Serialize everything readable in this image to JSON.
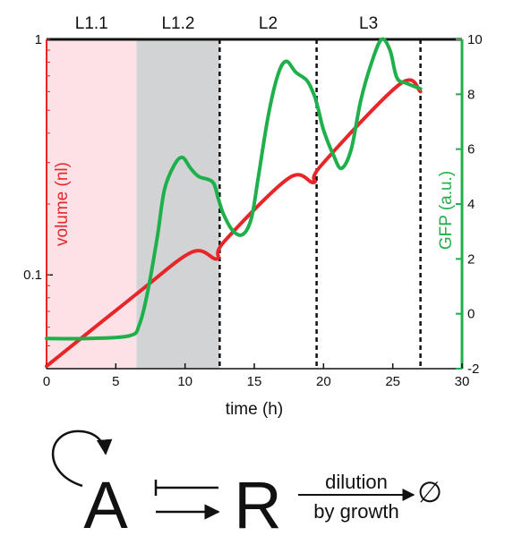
{
  "chart_data": {
    "type": "line",
    "xlabel": "time (h)",
    "xlim": [
      0,
      30
    ],
    "x_ticks": [
      "0",
      "5",
      "10",
      "15",
      "20",
      "25",
      "30"
    ],
    "y_left": {
      "label": "volume (nl)",
      "scale": "log",
      "ylim": [
        0.04,
        1
      ],
      "tick_values": [
        0.1,
        1
      ],
      "tick_labels": [
        "0.1",
        "1"
      ],
      "color": "#e8262a"
    },
    "y_right": {
      "label": "GFP (a.u.)",
      "scale": "linear",
      "ylim": [
        -2,
        10
      ],
      "tick_labels": [
        "-2",
        "0",
        "2",
        "4",
        "6",
        "8",
        "10"
      ],
      "color": "#1fb04c"
    },
    "stages": [
      {
        "label": "L1.1",
        "start": 0,
        "end": 6.5,
        "shade": "#fce1e6"
      },
      {
        "label": "L1.2",
        "start": 6.5,
        "end": 12.5,
        "shade": "#d1d3d4"
      },
      {
        "label": "L2",
        "start": 12.5,
        "end": 19.5,
        "shade": null
      },
      {
        "label": "L3",
        "start": 19.5,
        "end": 27,
        "shade": null
      }
    ],
    "dashed_lines_x": [
      12.5,
      19.5,
      27
    ],
    "series": [
      {
        "name": "volume",
        "axis": "left",
        "color": "#e8262a",
        "x": [
          0,
          6.5,
          10.5,
          12.3,
          12.8,
          17.5,
          19.3,
          19.8,
          25.5,
          27
        ],
        "y": [
          0.041,
          0.083,
          0.125,
          0.117,
          0.138,
          0.258,
          0.247,
          0.29,
          0.645,
          0.6
        ]
      },
      {
        "name": "GFP",
        "axis": "right",
        "color": "#1fb04c",
        "x": [
          0,
          3,
          6,
          6.7,
          7.3,
          8,
          8.5,
          9.2,
          9.8,
          10.4,
          11,
          12,
          12.4,
          12.8,
          13.5,
          14.2,
          14.8,
          15.3,
          16,
          16.7,
          17.3,
          18,
          18.8,
          19.3,
          19.6,
          20,
          20.7,
          21.3,
          22,
          22.7,
          23.5,
          24.2,
          24.8,
          25.3,
          26,
          27
        ],
        "y": [
          -0.9,
          -0.9,
          -0.8,
          -0.4,
          0.8,
          2.8,
          4.5,
          5.4,
          5.7,
          5.3,
          5.0,
          4.8,
          4.2,
          3.6,
          3.0,
          2.9,
          3.5,
          5.0,
          7.2,
          8.7,
          9.2,
          8.8,
          8.5,
          8.0,
          7.5,
          6.7,
          5.8,
          5.3,
          6.0,
          7.8,
          9.2,
          10.0,
          9.6,
          8.6,
          8.4,
          8.2
        ]
      }
    ]
  },
  "diagram": {
    "node_a": "A",
    "node_r": "R",
    "edge_top": "dilution",
    "edge_bottom": "by growth",
    "sink": "∅"
  }
}
